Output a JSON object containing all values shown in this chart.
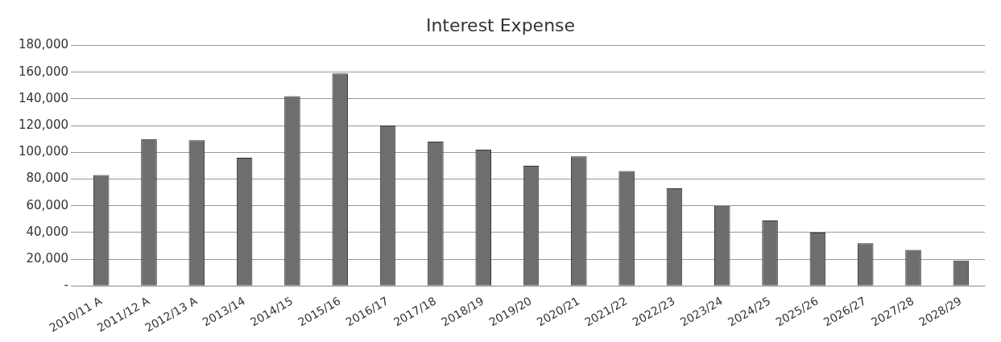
{
  "chart_data": {
    "type": "bar",
    "title": "Interest Expense",
    "categories": [
      "2010/11 A",
      "2011/12 A",
      "2012/13 A",
      "2013/14",
      "2014/15",
      "2015/16",
      "2016/17",
      "2017/18",
      "2018/19",
      "2019/20",
      "2020/21",
      "2021/22",
      "2022/23",
      "2023/24",
      "2024/25",
      "2025/26",
      "2026/27",
      "2027/28",
      "2028/29"
    ],
    "values": [
      83000,
      110000,
      109000,
      96000,
      142000,
      159000,
      120000,
      108000,
      102000,
      90000,
      97000,
      86000,
      73000,
      60000,
      49000,
      40000,
      32000,
      27000,
      19000
    ],
    "color": "#6e6e6e",
    "ylim": [
      0,
      180000
    ],
    "yticks": [
      {
        "value": 0,
        "label": "-"
      },
      {
        "value": 20000,
        "label": "20,000"
      },
      {
        "value": 40000,
        "label": "40,000"
      },
      {
        "value": 60000,
        "label": "60,000"
      },
      {
        "value": 80000,
        "label": "80,000"
      },
      {
        "value": 100000,
        "label": "100,000"
      },
      {
        "value": 120000,
        "label": "120,000"
      },
      {
        "value": 140000,
        "label": "140,000"
      },
      {
        "value": 160000,
        "label": "160,000"
      },
      {
        "value": 180000,
        "label": "180,000"
      }
    ],
    "grid": "y",
    "legend": false
  }
}
